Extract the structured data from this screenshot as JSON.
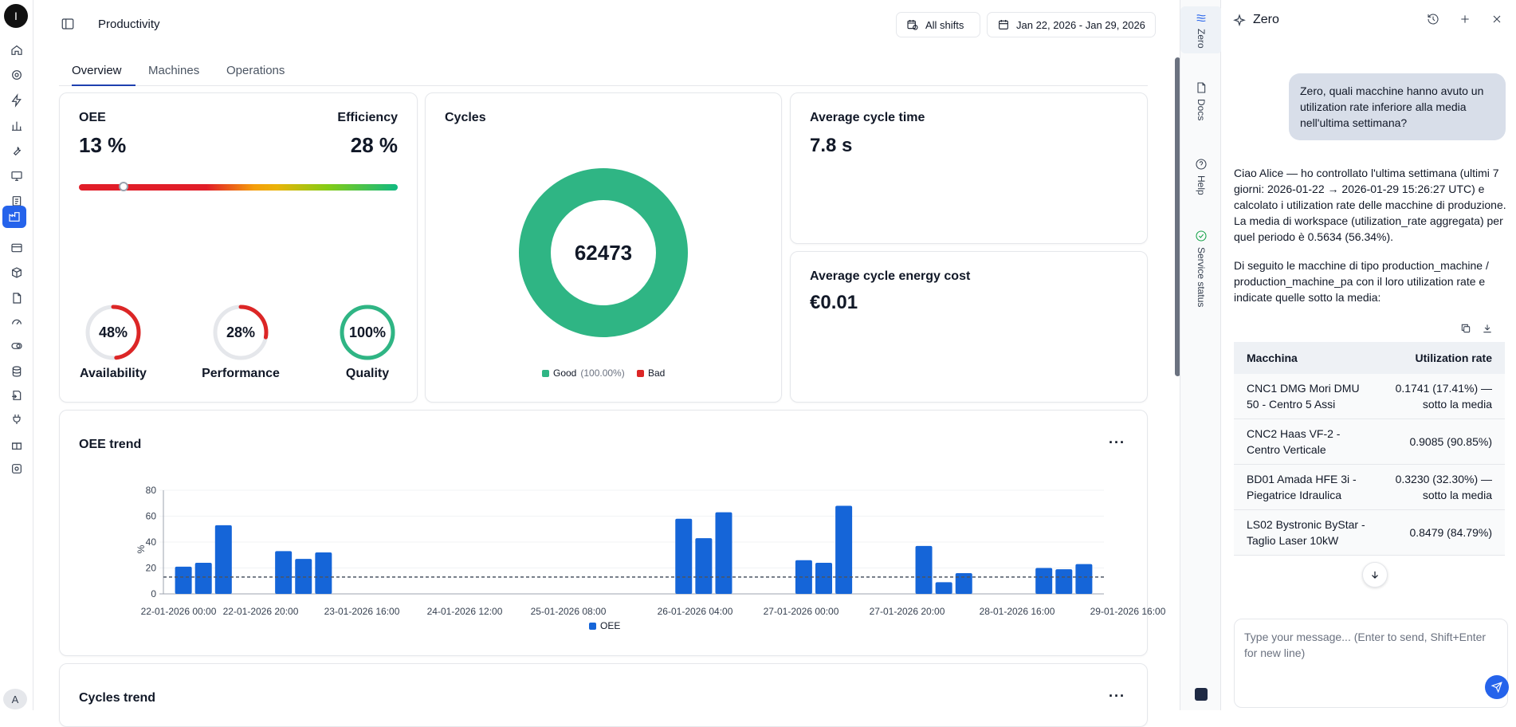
{
  "rail": {
    "logo": "I",
    "avatar": "A",
    "icons": [
      "home-icon",
      "gear-icon",
      "bolt-icon",
      "bar-chart-icon",
      "wrench-icon",
      "monitor-icon",
      "clipboard-icon",
      "factory-chart-icon",
      "list-icon",
      "box-icon",
      "document-icon",
      "gauge-icon",
      "toggle-icon",
      "database-icon",
      "transfer-icon",
      "plug-icon",
      "gift-icon",
      "settings-cog-icon"
    ]
  },
  "header": {
    "title": "Productivity",
    "shifts_label": "All shifts",
    "date_range": "Jan 22, 2026 - Jan 29, 2026"
  },
  "tabs": [
    {
      "label": "Overview",
      "active": true
    },
    {
      "label": "Machines",
      "active": false
    },
    {
      "label": "Operations",
      "active": false
    }
  ],
  "oee_card": {
    "oee_label": "OEE",
    "oee_value": "13 %",
    "efficiency_label": "Efficiency",
    "efficiency_value": "28 %",
    "gauge_level": 0.14,
    "rings": [
      {
        "label": "Availability",
        "value": "48%",
        "fraction": 0.48,
        "color": "#dc2626"
      },
      {
        "label": "Performance",
        "value": "28%",
        "fraction": 0.28,
        "color": "#dc2626"
      },
      {
        "label": "Quality",
        "value": "100%",
        "fraction": 1.0,
        "color": "#2fb584"
      }
    ]
  },
  "cycles_card": {
    "title": "Cycles",
    "total": "62473",
    "good_label": "Good",
    "good_pct": "(100.00%)",
    "bad_label": "Bad",
    "good_color": "#2fb584",
    "bad_color": "#dc2626"
  },
  "avg_cycle_time": {
    "title": "Average cycle time",
    "value": "7.8 s"
  },
  "avg_energy_cost": {
    "title": "Average cycle energy cost",
    "value": "€0.01"
  },
  "oee_trend": {
    "title": "OEE trend",
    "more": "···",
    "ylabel": "%",
    "legend": "OEE"
  },
  "chart_data": {
    "type": "bar",
    "title": "OEE trend",
    "ylabel": "%",
    "ylim": [
      0,
      80
    ],
    "yticks": [
      0,
      20,
      40,
      60,
      80
    ],
    "xtick_labels": [
      "22-01-2026 00:00",
      "22-01-2026 20:00",
      "23-01-2026 16:00",
      "24-01-2026 12:00",
      "25-01-2026 08:00",
      "26-01-2026 04:00",
      "27-01-2026 00:00",
      "27-01-2026 20:00",
      "28-01-2026 16:00",
      "29-01-2026 16:00"
    ],
    "series": [
      {
        "name": "OEE",
        "color": "#1565d8",
        "points": [
          {
            "slot": 0.8,
            "value": 21
          },
          {
            "slot": 1.6,
            "value": 24
          },
          {
            "slot": 2.4,
            "value": 53
          },
          {
            "slot": 4.8,
            "value": 33
          },
          {
            "slot": 5.6,
            "value": 27
          },
          {
            "slot": 6.4,
            "value": 32
          },
          {
            "slot": 20.8,
            "value": 58
          },
          {
            "slot": 21.6,
            "value": 43
          },
          {
            "slot": 22.4,
            "value": 63
          },
          {
            "slot": 25.6,
            "value": 26
          },
          {
            "slot": 26.4,
            "value": 24
          },
          {
            "slot": 27.2,
            "value": 68
          },
          {
            "slot": 30.4,
            "value": 37
          },
          {
            "slot": 31.2,
            "value": 9
          },
          {
            "slot": 32.0,
            "value": 16
          },
          {
            "slot": 35.2,
            "value": 20
          },
          {
            "slot": 36.0,
            "value": 19
          },
          {
            "slot": 36.8,
            "value": 23
          }
        ]
      }
    ],
    "reference_line": 13,
    "grid": "horizontal"
  },
  "cycles_trend": {
    "title": "Cycles trend",
    "more": "···"
  },
  "right_rail": [
    {
      "label": "Zero",
      "icon": "zero-logo-icon",
      "active": true
    },
    {
      "label": "Docs",
      "icon": "document-icon",
      "active": false
    },
    {
      "label": "Help",
      "icon": "help-icon",
      "active": false
    },
    {
      "label": "Service status",
      "icon": "check-circle-icon",
      "active": false
    }
  ],
  "chat": {
    "title": "Zero",
    "user_message": "Zero, quali macchine hanno avuto un utilization rate inferiore alla media nell'ultima settimana?",
    "reply_p1": "Ciao Alice — ho controllato l'ultima settimana (ultimi 7 giorni: 2026-01-22 → 2026-01-29 15:26:27 UTC) e calcolato i utilization rate delle macchine di produzione. La media di workspace (utilization_rate aggregata) per quel periodo è 0.5634 (56.34%).",
    "reply_p2": "Di seguito le macchine di tipo production_machine / production_machine_pa con il loro utilization rate e indicate quelle sotto la media:",
    "table": {
      "headers": [
        "Macchina",
        "Utilization rate"
      ],
      "rows": [
        [
          "CNC1 DMG Mori DMU 50 - Centro 5 Assi",
          "0.1741 (17.41%) — sotto la media"
        ],
        [
          "CNC2 Haas VF-2 - Centro Verticale",
          "0.9085 (90.85%)"
        ],
        [
          "BD01 Amada HFE 3i - Piegatrice Idraulica",
          "0.3230 (32.30%) — sotto la media"
        ],
        [
          "LS02 Bystronic ByStar - Taglio Laser 10kW",
          "0.8479 (84.79%)"
        ]
      ]
    },
    "input_placeholder": "Type your message... (Enter to send, Shift+Enter for new line)"
  }
}
